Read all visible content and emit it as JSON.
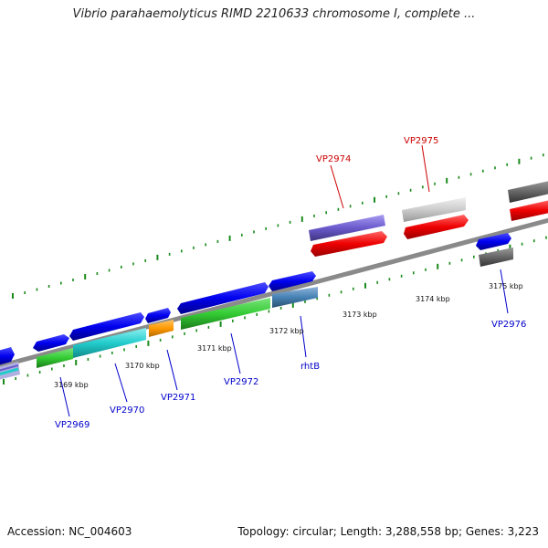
{
  "title": "Vibrio parahaemolyticus RIMD 2210633 chromosome I, complete ...",
  "footer": {
    "accession": "Accession: NC_004603",
    "summary": "Topology: circular; Length: 3,288,558 bp; Genes: 3,223"
  },
  "colors": {
    "backbone": "#8a8a8a",
    "tick": "#1a8a1a",
    "label_blue": "#0000cc",
    "label_red": "#cc0000"
  },
  "kbp_labels": [
    "3169 kbp",
    "3170 kbp",
    "3171 kbp",
    "3172 kbp",
    "3173 kbp",
    "3174 kbp",
    "3175 kbp"
  ],
  "gene_labels": [
    "VP2969",
    "VP2970",
    "VP2971",
    "VP2972",
    "rhtB",
    "VP2974",
    "VP2975",
    "VP2976"
  ]
}
